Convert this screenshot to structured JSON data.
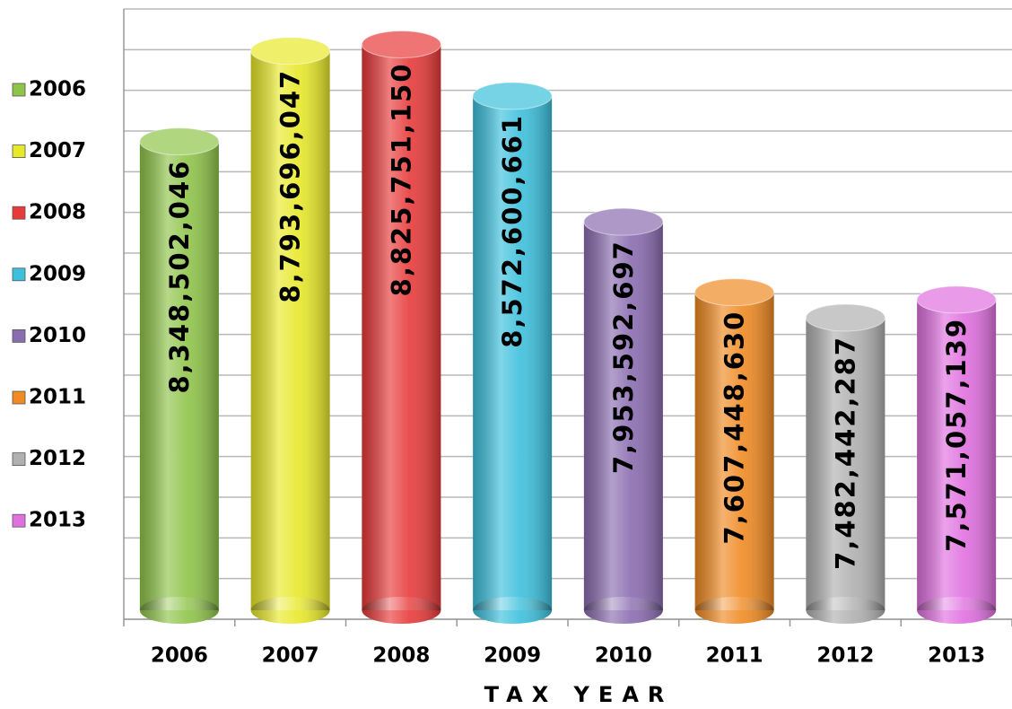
{
  "chart_data": {
    "type": "bar",
    "axis_label": "TAX YEAR",
    "categories": [
      "2006",
      "2007",
      "2008",
      "2009",
      "2010",
      "2011",
      "2012",
      "2013"
    ],
    "values": [
      8348502046,
      8793696047,
      8825751150,
      8572600661,
      7953592697,
      7607448630,
      7482442287,
      7571057139
    ],
    "value_labels": [
      "8,348,502,046",
      "8,793,696,047",
      "8,825,751,150",
      "8,572,600,661",
      "7,953,592,697",
      "7,607,448,630",
      "7,482,442,287",
      "7,571,057,139"
    ],
    "colors": [
      "#8fc44a",
      "#e8e82a",
      "#e83a3a",
      "#3cc0dc",
      "#8a6cb0",
      "#f08a22",
      "#b0b0b0",
      "#e070e0"
    ],
    "ylim": [
      6000000000,
      9000000000
    ],
    "yticks": [
      6000000000,
      6200000000,
      6400000000,
      6600000000,
      6800000000,
      7000000000,
      7200000000,
      7400000000,
      7600000000,
      7800000000,
      8000000000,
      8200000000,
      8400000000,
      8600000000,
      8800000000,
      9000000000
    ],
    "grid": true,
    "legend": "left"
  }
}
